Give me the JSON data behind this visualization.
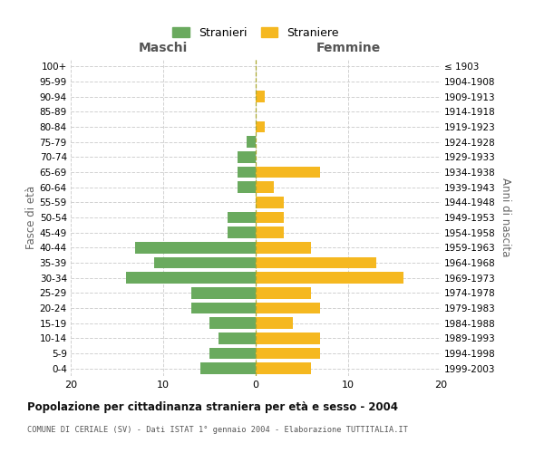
{
  "age_groups": [
    "0-4",
    "5-9",
    "10-14",
    "15-19",
    "20-24",
    "25-29",
    "30-34",
    "35-39",
    "40-44",
    "45-49",
    "50-54",
    "55-59",
    "60-64",
    "65-69",
    "70-74",
    "75-79",
    "80-84",
    "85-89",
    "90-94",
    "95-99",
    "100+"
  ],
  "birth_years": [
    "1999-2003",
    "1994-1998",
    "1989-1993",
    "1984-1988",
    "1979-1983",
    "1974-1978",
    "1969-1973",
    "1964-1968",
    "1959-1963",
    "1954-1958",
    "1949-1953",
    "1944-1948",
    "1939-1943",
    "1934-1938",
    "1929-1933",
    "1924-1928",
    "1919-1923",
    "1914-1918",
    "1909-1913",
    "1904-1908",
    "≤ 1903"
  ],
  "males": [
    6,
    5,
    4,
    5,
    7,
    7,
    14,
    11,
    13,
    3,
    3,
    0,
    2,
    2,
    2,
    1,
    0,
    0,
    0,
    0,
    0
  ],
  "females": [
    6,
    7,
    7,
    4,
    7,
    6,
    16,
    13,
    6,
    3,
    3,
    3,
    2,
    7,
    0,
    0,
    1,
    0,
    1,
    0,
    0
  ],
  "male_color": "#6aaa5e",
  "female_color": "#f5b820",
  "title": "Popolazione per cittadinanza straniera per età e sesso - 2004",
  "subtitle": "COMUNE DI CERIALE (SV) - Dati ISTAT 1° gennaio 2004 - Elaborazione TUTTITALIA.IT",
  "xlabel_left": "Maschi",
  "xlabel_right": "Femmine",
  "ylabel_left": "Fasce di età",
  "ylabel_right": "Anni di nascita",
  "xlim": 20,
  "legend_stranieri": "Stranieri",
  "legend_straniere": "Straniere",
  "background_color": "#ffffff",
  "grid_color": "#cccccc"
}
